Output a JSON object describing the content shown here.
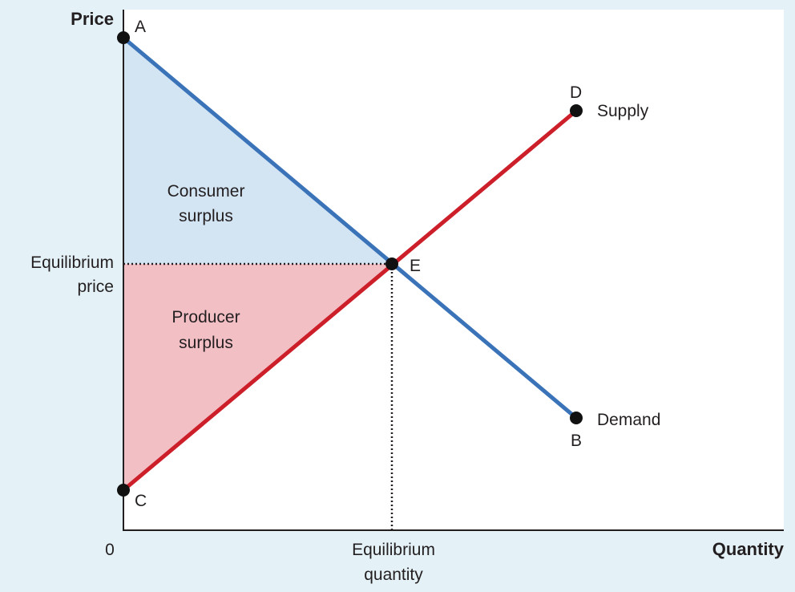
{
  "diagram": {
    "axes": {
      "y_title": "Price",
      "x_title": "Quantity",
      "origin": "0",
      "eq_price": [
        "Equilibrium",
        "price"
      ],
      "eq_quantity": [
        "Equilibrium",
        "quantity"
      ]
    },
    "points": {
      "A": "A",
      "B": "B",
      "C": "C",
      "D": "D",
      "E": "E"
    },
    "curves": {
      "supply": "Supply",
      "demand": "Demand"
    },
    "areas": {
      "consumer": [
        "Consumer",
        "surplus"
      ],
      "producer": [
        "Producer",
        "surplus"
      ]
    },
    "colors": {
      "background": "#e4f2f8",
      "plot_area": "#ffffff",
      "demand_line": "#3b73b9",
      "supply_line": "#cc1f2a",
      "consumer_fill": "#d3e4f3",
      "producer_fill": "#f2bfc5",
      "point": "#111111"
    }
  }
}
